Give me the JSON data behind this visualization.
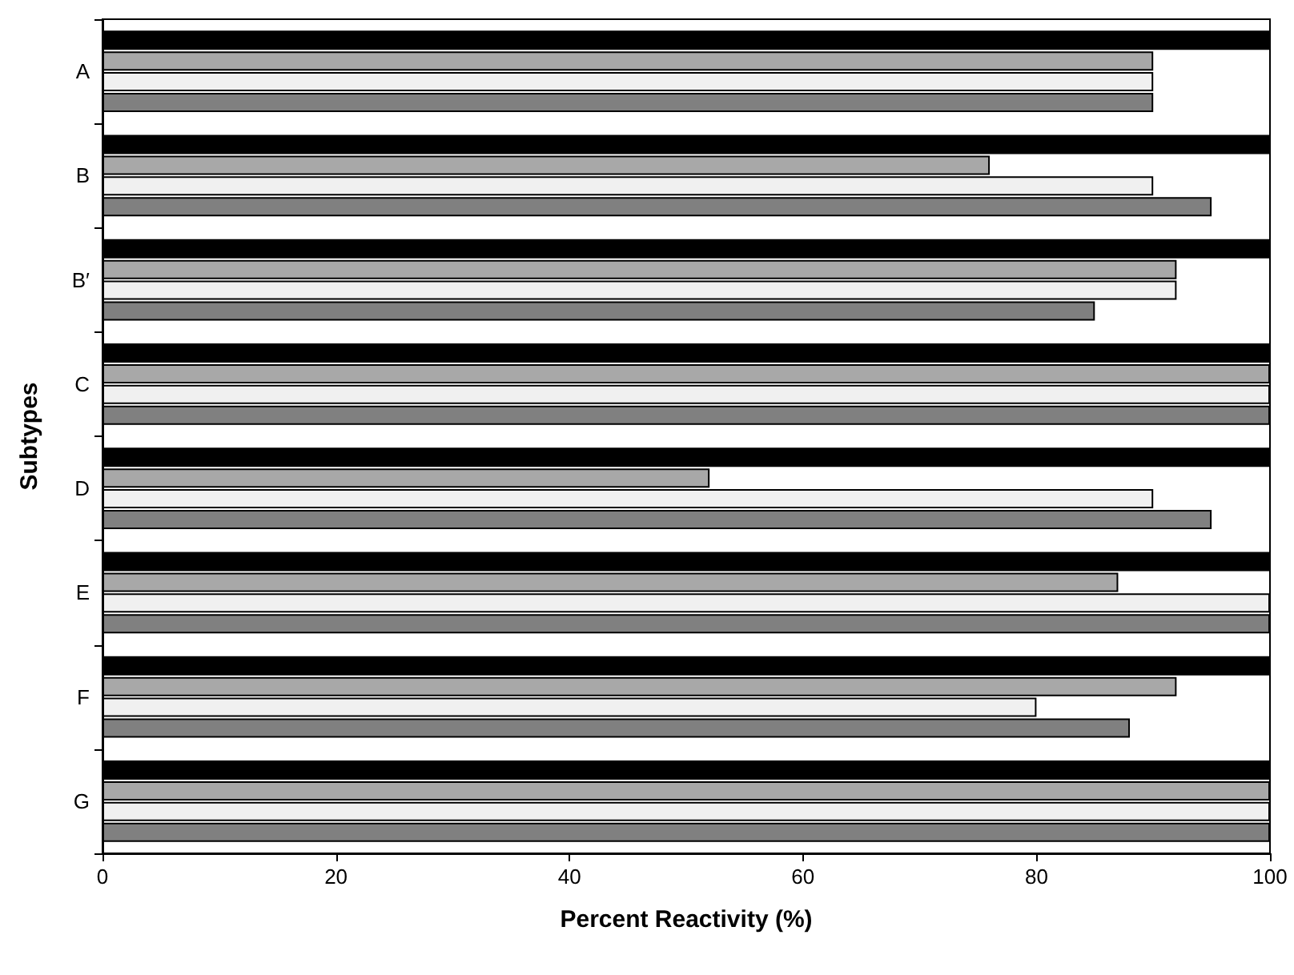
{
  "chart_data": {
    "type": "bar",
    "orientation": "horizontal",
    "xlabel": "Percent Reactivity (%)",
    "ylabel": "Subtypes",
    "categories": [
      "A",
      "B",
      "B′",
      "C",
      "D",
      "E",
      "F",
      "G"
    ],
    "series": [
      {
        "color": "#000000",
        "values": [
          100,
          100,
          100,
          100,
          100,
          100,
          100,
          100
        ]
      },
      {
        "color": "#a8a8a8",
        "values": [
          90,
          76,
          92,
          100,
          52,
          87,
          92,
          100
        ]
      },
      {
        "color": "#f0f0f0",
        "values": [
          90,
          90,
          92,
          100,
          90,
          100,
          80,
          100
        ]
      },
      {
        "color": "#808080",
        "values": [
          90,
          95,
          85,
          100,
          95,
          100,
          88,
          100
        ]
      }
    ],
    "xlim": [
      0,
      100
    ],
    "xticks": [
      0,
      20,
      40,
      60,
      80,
      100
    ],
    "grid": false
  }
}
